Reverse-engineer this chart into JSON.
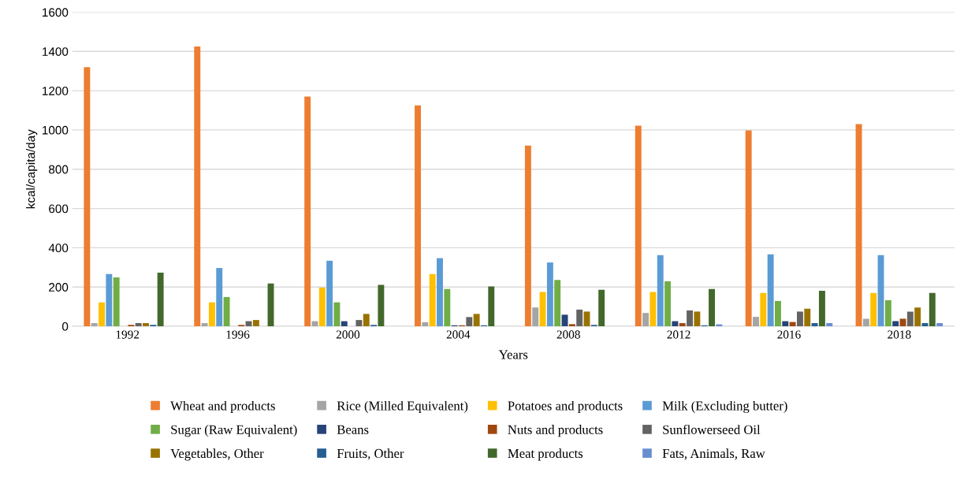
{
  "chart_data": {
    "type": "bar",
    "xlabel": "Years",
    "ylabel": "kcal/capita/day",
    "categories": [
      "1992",
      "1996",
      "2000",
      "2004",
      "2008",
      "2012",
      "2016",
      "2018"
    ],
    "series": [
      {
        "name": "Wheat and products",
        "color": "#ed7d31",
        "values": [
          1320,
          1425,
          1170,
          1125,
          920,
          1022,
          998,
          1030
        ]
      },
      {
        "name": "Rice (Milled Equivalent)",
        "color": "#a5a5a5",
        "values": [
          16,
          16,
          26,
          21,
          96,
          68,
          48,
          38
        ]
      },
      {
        "name": "Potatoes and products",
        "color": "#ffc000",
        "values": [
          122,
          122,
          197,
          266,
          175,
          175,
          170,
          170
        ]
      },
      {
        "name": "Milk (Excluding butter)",
        "color": "#5b9bd5",
        "values": [
          266,
          297,
          334,
          347,
          325,
          362,
          367,
          362
        ]
      },
      {
        "name": "Sugar (Raw Equivalent)",
        "color": "#70ad47",
        "values": [
          249,
          149,
          122,
          190,
          236,
          229,
          129,
          133
        ]
      },
      {
        "name": "Beans",
        "color": "#264478",
        "values": [
          null,
          null,
          26,
          5,
          59,
          26,
          26,
          26
        ]
      },
      {
        "name": "Nuts and products",
        "color": "#9e480e",
        "values": [
          7,
          7,
          null,
          5,
          11,
          16,
          22,
          38
        ]
      },
      {
        "name": "Sunflowerseed Oil",
        "color": "#636363",
        "values": [
          16,
          26,
          32,
          47,
          85,
          81,
          75,
          75
        ]
      },
      {
        "name": "Vegetables, Other",
        "color": "#997300",
        "values": [
          16,
          32,
          63,
          63,
          75,
          75,
          90,
          96
        ]
      },
      {
        "name": "Fruits, Other",
        "color": "#255e91",
        "values": [
          7,
          null,
          7,
          5,
          7,
          5,
          16,
          16
        ]
      },
      {
        "name": "Meat products",
        "color": "#43682b",
        "values": [
          273,
          218,
          211,
          203,
          186,
          190,
          181,
          170
        ]
      },
      {
        "name": "Fats, Animals, Raw",
        "color": "#698ed0",
        "values": [
          null,
          null,
          null,
          null,
          null,
          10,
          16,
          16
        ]
      }
    ],
    "ylim": [
      0,
      1600
    ],
    "yticks": [
      0,
      200,
      400,
      600,
      800,
      1000,
      1200,
      1400,
      1600
    ],
    "grid": "y",
    "legend": "bottom"
  }
}
